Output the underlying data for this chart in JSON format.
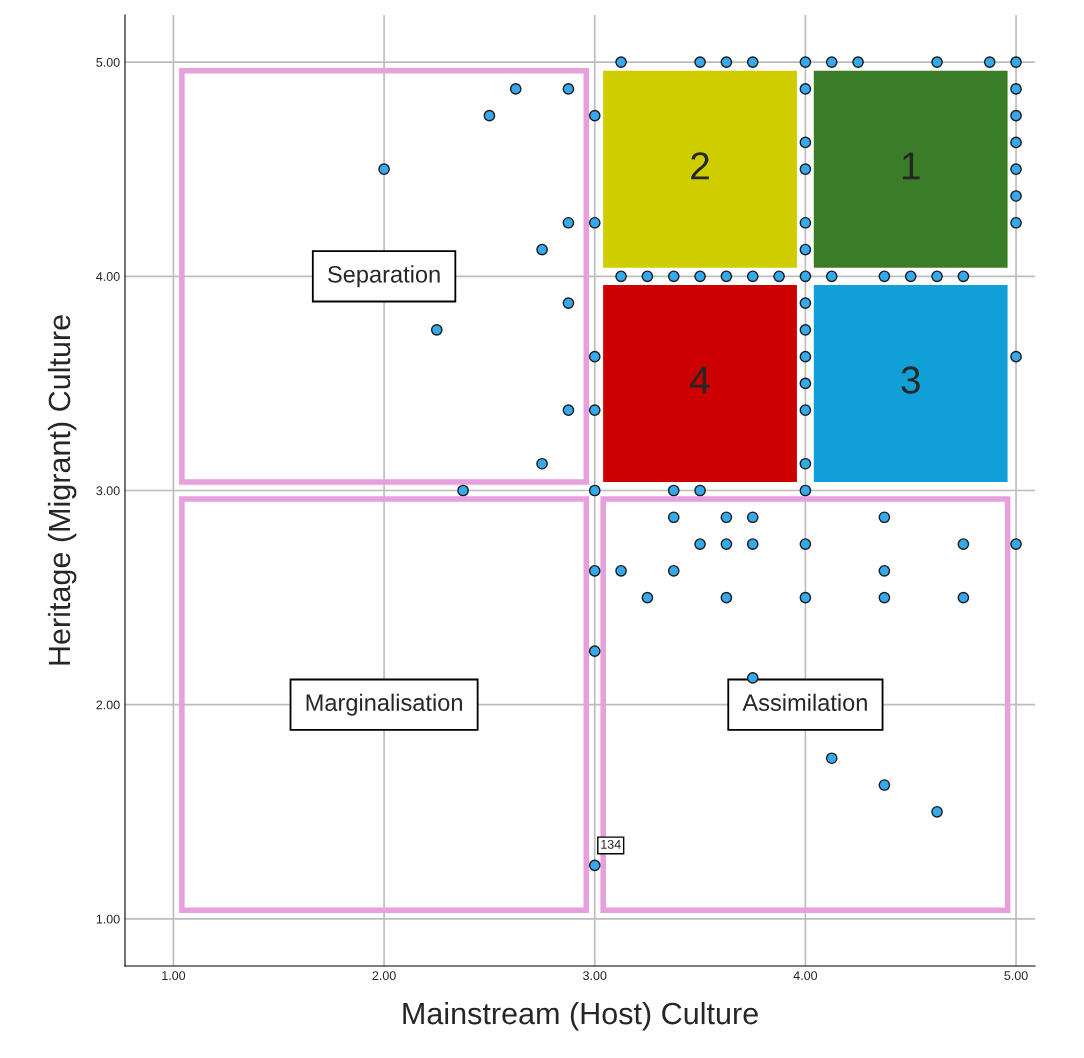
{
  "chart_data": {
    "type": "scatter",
    "xlabel": "Mainstream (Host) Culture",
    "ylabel": "Heritage (Migrant) Culture",
    "x": [
      3.125,
      3.5,
      3.625,
      3.75,
      4.0,
      4.125,
      4.25,
      4.625,
      4.875,
      5.0,
      4.0,
      5.0,
      2.625,
      2.875,
      3.0,
      5.0,
      2.5,
      4.0,
      5.0,
      4.0,
      5.0,
      2.0,
      5.0,
      2.875,
      3.0,
      4.0,
      5.0,
      4.0,
      2.75,
      3.125,
      3.25,
      3.375,
      3.5,
      3.625,
      3.75,
      3.875,
      4.0,
      4.125,
      4.375,
      4.5,
      4.625,
      4.75,
      2.875,
      4.0,
      4.0,
      2.25,
      3.0,
      4.0,
      5.0,
      4.0,
      2.875,
      3.0,
      4.0,
      4.0,
      2.75,
      3.0,
      3.375,
      3.5,
      4.0,
      2.375,
      3.375,
      3.625,
      3.75,
      4.375,
      3.5,
      3.625,
      3.75,
      4.0,
      4.75,
      5.0,
      3.0,
      3.125,
      3.375,
      4.375,
      3.25,
      3.625,
      4.0,
      4.375,
      4.75,
      3.0,
      3.75,
      4.125,
      4.375,
      4.625,
      3.0
    ],
    "values": [
      5.0,
      5.0,
      5.0,
      5.0,
      5.0,
      5.0,
      5.0,
      5.0,
      5.0,
      5.0,
      4.875,
      4.875,
      4.875,
      4.875,
      4.75,
      4.75,
      4.75,
      4.625,
      4.625,
      4.5,
      4.5,
      4.5,
      4.375,
      4.25,
      4.25,
      4.25,
      4.25,
      4.125,
      4.125,
      4.0,
      4.0,
      4.0,
      4.0,
      4.0,
      4.0,
      4.0,
      4.0,
      4.0,
      4.0,
      4.0,
      4.0,
      4.0,
      3.875,
      3.875,
      3.75,
      3.75,
      3.625,
      3.625,
      3.625,
      3.5,
      3.375,
      3.375,
      3.375,
      3.125,
      3.125,
      3.0,
      3.0,
      3.0,
      3.0,
      3.0,
      2.875,
      2.875,
      2.875,
      2.875,
      2.75,
      2.75,
      2.75,
      2.75,
      2.75,
      2.75,
      2.625,
      2.625,
      2.625,
      2.625,
      2.5,
      2.5,
      2.5,
      2.5,
      2.5,
      2.25,
      2.125,
      1.75,
      1.625,
      1.5,
      1.25
    ],
    "color": "#35a9ec",
    "marker": "circle",
    "xlim": [
      0.77,
      5.09
    ],
    "ylim": [
      0.78,
      5.22
    ],
    "xticks": [
      {
        "value": 1,
        "label": "1.00"
      },
      {
        "value": 2,
        "label": "2.00"
      },
      {
        "value": 3,
        "label": "3.00"
      },
      {
        "value": 4,
        "label": "4.00"
      },
      {
        "value": 5,
        "label": "5.00"
      }
    ],
    "yticks": [
      {
        "value": 1,
        "label": "1.00"
      },
      {
        "value": 2,
        "label": "2.00"
      },
      {
        "value": 3,
        "label": "3.00"
      },
      {
        "value": 4,
        "label": "4.00"
      },
      {
        "value": 5,
        "label": "5.00"
      }
    ],
    "grid": true,
    "annotations": [
      "1",
      "2",
      "3",
      "4",
      "Separation",
      "Marginalisation",
      "Assimilation",
      {
        "text": "134",
        "x": 3.0,
        "y": 1.25
      }
    ]
  }
}
